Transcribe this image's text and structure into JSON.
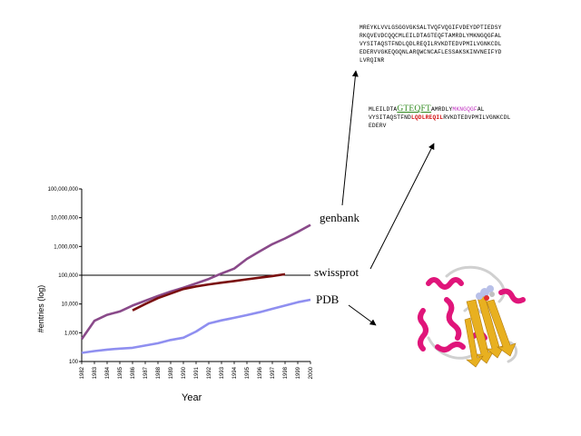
{
  "sequences": {
    "full": [
      "MREYKLVVLGSGGVGKSALTVQFVQGIFVDEYDPTIEDSY",
      "RKQVEVDCQQCMLEILDTAGTEQFTAMRDLYMKNGQGFAL",
      "VYSITAQSTFNDLQDLREQILRVKDTEDVPMILVGNKCDL",
      "EDERVVGKEQGQNLARQWCNCAFLESSAKSKINVNEIFYD",
      "LVRQINR"
    ],
    "fragment": {
      "line1_prefix": "MLEILDTA",
      "line1_green": "GTEQFT",
      "line1_mid": "AMRDLY",
      "line1_magenta": "MKNGQGF",
      "line1_suffix": "AL",
      "line2_prefix": "VYSITAQSTFND",
      "line2_red": "LQDLREQIL",
      "line2_suffix": "RVKDTEDVPMILVGNKCDL",
      "line3": "EDERV"
    }
  },
  "labels": {
    "genbank": "genbank",
    "swissprot": "swissprot",
    "pdb": "PDB"
  },
  "colors": {
    "genbank": "#8a4a8a",
    "swissprot": "#7a0f0f",
    "pdb": "#8f8ff0",
    "helix": "#e0157a",
    "sheet": "#e8b020",
    "coil": "#cccccc"
  },
  "chart_data": {
    "type": "line",
    "xlabel": "Year",
    "ylabel": "#entries (log)",
    "y_scale": "log",
    "ylim": [
      100,
      100000000
    ],
    "yticks": [
      100,
      1000,
      10000,
      100000,
      1000000,
      10000000,
      100000000
    ],
    "ytick_labels": [
      "100",
      "1,000",
      "10,000",
      "100,000",
      "1,000,000",
      "10,000,000",
      "100,000,000"
    ],
    "x_tick_labels": [
      "1982",
      "1983",
      "1984",
      "1985",
      "1986",
      "1987",
      "1988",
      "1989",
      "1990",
      "1991",
      "1992",
      "1993",
      "1994",
      "1995",
      "1996",
      "1997",
      "1998",
      "1999",
      "2000"
    ],
    "x": [
      1982,
      1983,
      1984,
      1985,
      1986,
      1987,
      1988,
      1989,
      1990,
      1991,
      1992,
      1993,
      1994,
      1995,
      1996,
      1997,
      1998,
      1999,
      2000
    ],
    "reference_line": 100000,
    "series": [
      {
        "name": "genbank",
        "values": [
          600,
          2600,
          4200,
          5500,
          8800,
          13000,
          19000,
          27000,
          37000,
          52000,
          74000,
          115000,
          170000,
          370000,
          670000,
          1200000,
          1900000,
          3200000,
          5600000
        ]
      },
      {
        "name": "swissprot",
        "values": [
          null,
          null,
          null,
          null,
          6000,
          10000,
          16000,
          23000,
          33000,
          41000,
          48000,
          55000,
          63000,
          72000,
          82000,
          94000,
          108000,
          null,
          null
        ]
      },
      {
        "name": "PDB",
        "values": [
          200,
          230,
          260,
          280,
          300,
          360,
          430,
          560,
          670,
          1100,
          2100,
          2700,
          3300,
          4100,
          5200,
          6800,
          8800,
          11500,
          14000
        ]
      }
    ]
  }
}
